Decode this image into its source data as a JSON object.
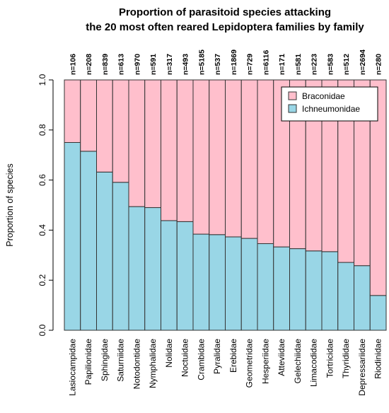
{
  "chart_data": {
    "type": "bar",
    "stacked": true,
    "title_line1": "Proportion of parasitoid species attacking",
    "title_line2": "the 20 most often reared Lepidoptera families by family",
    "ylabel": "Proportion of species",
    "xlabel": "",
    "ylim": [
      0,
      1
    ],
    "yticks": [
      "0.0",
      "0.2",
      "0.4",
      "0.6",
      "0.8",
      "1.0"
    ],
    "grid": false,
    "legend_position": "top-right",
    "categories": [
      "Lasiocampidae",
      "Papilionidae",
      "Sphingidae",
      "Saturniidae",
      "Notodontidae",
      "Nymphalidae",
      "Nolidae",
      "Noctuidae",
      "Crambidae",
      "Pyralidae",
      "Erebidae",
      "Geometridae",
      "Hesperiidae",
      "Atteviidae",
      "Gelechiidae",
      "Limacodidae",
      "Tortricidae",
      "Thyrididae",
      "Depressariidae",
      "Riodinidae"
    ],
    "n_labels": [
      "n=106",
      "n=208",
      "n=839",
      "n=613",
      "n=970",
      "n=591",
      "n=317",
      "n=493",
      "n=5185",
      "n=537",
      "n=1869",
      "n=729",
      "n=6116",
      "n=171",
      "n=581",
      "n=223",
      "n=583",
      "n=512",
      "n=2694",
      "n=280"
    ],
    "series": [
      {
        "name": "Ichneumonidae",
        "color": "#99d6e6",
        "values": [
          0.75,
          0.715,
          0.632,
          0.591,
          0.494,
          0.49,
          0.438,
          0.434,
          0.384,
          0.382,
          0.373,
          0.367,
          0.346,
          0.333,
          0.326,
          0.317,
          0.314,
          0.271,
          0.258,
          0.139
        ]
      },
      {
        "name": "Braconidae",
        "color": "#ffbfcc",
        "values": [
          0.25,
          0.285,
          0.368,
          0.409,
          0.506,
          0.51,
          0.562,
          0.566,
          0.616,
          0.618,
          0.627,
          0.633,
          0.654,
          0.667,
          0.674,
          0.683,
          0.686,
          0.729,
          0.742,
          0.861
        ]
      }
    ],
    "legend": [
      "Braconidae",
      "Ichneumonidae"
    ]
  }
}
